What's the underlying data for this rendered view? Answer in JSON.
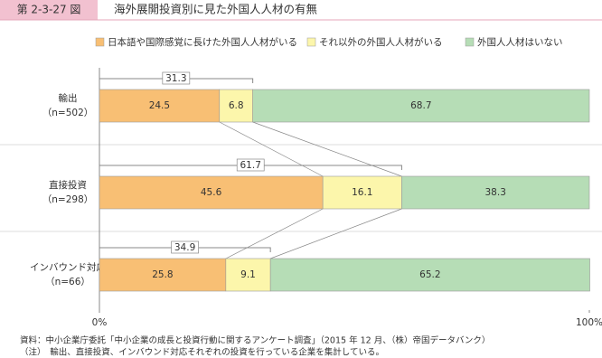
{
  "header": {
    "figure_number": "第 2-3-27 図",
    "title": "海外展開投資別に見た外国人人材の有無"
  },
  "chart_data": {
    "type": "stacked-bar-horizontal",
    "categories": [
      "輸出",
      "直接投資",
      "インバウンド対応"
    ],
    "category_notes": [
      "（n=502）",
      "（n=298）",
      "（n=66）"
    ],
    "series": [
      {
        "name": "日本語や国際感覚に長けた外国人人材がいる",
        "color": "#f8bf74",
        "values": [
          24.5,
          45.6,
          25.8
        ]
      },
      {
        "name": "それ以外の外国人人材がいる",
        "color": "#fcf6ab",
        "values": [
          6.8,
          16.1,
          9.1
        ]
      },
      {
        "name": "外国人人材はいない",
        "color": "#b6ddb6",
        "values": [
          68.7,
          38.3,
          65.2
        ]
      }
    ],
    "subtotals": [
      31.3,
      61.7,
      34.9
    ],
    "xlim": [
      0,
      100
    ],
    "xticks": [
      {
        "value": 0,
        "label": "0%"
      },
      {
        "value": 100,
        "label": "100%"
      }
    ],
    "legend": "top"
  },
  "notes": [
    "資料：中小企業庁委託「中小企業の成長と投資行動に関するアンケート調査」（2015 年 12 月、（株）帝国データバンク）",
    "（注）　輸出、直接投資、インバウンド対応それぞれの投資を行っている企業を集計している。"
  ]
}
